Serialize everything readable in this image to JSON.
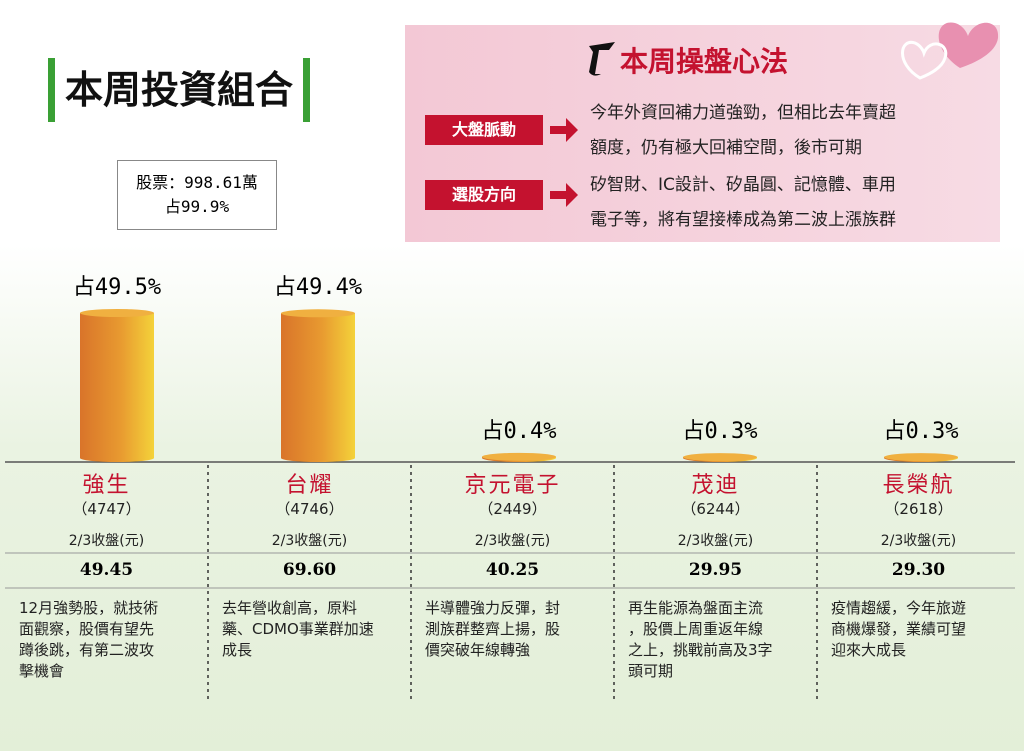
{
  "header": {
    "title": "本周投資組合",
    "holding_lines": [
      "股票：998.61萬",
      "占99.9%"
    ]
  },
  "strategy": {
    "title": "本周操盤心法",
    "items": [
      {
        "label": "大盤脈動",
        "lines": [
          "今年外資回補力道強勁，但相比去年賣超",
          "額度，仍有極大回補空間，後市可期"
        ]
      },
      {
        "label": "選股方向",
        "lines": [
          "矽智財、IC設計、矽晶圓、記憶體、車用",
          "電子等，將有望接棒成為第二波上漲族群"
        ]
      }
    ]
  },
  "stocks": [
    {
      "name": "強生",
      "code": "（4747）",
      "share": 49.5,
      "share_label": "占49.5%",
      "close_label": "2/3收盤(元)",
      "close": "49.45",
      "lines": [
        "12月強勢股，就技術",
        "面觀察，股價有望先",
        "蹲後跳，有第二波攻",
        "擊機會"
      ]
    },
    {
      "name": "台耀",
      "code": "（4746）",
      "share": 49.4,
      "share_label": "占49.4%",
      "close_label": "2/3收盤(元)",
      "close": "69.60",
      "lines": [
        "去年營收創高，原料",
        "藥、CDMO事業群加速",
        "成長"
      ]
    },
    {
      "name": "京元電子",
      "code": "（2449）",
      "share": 0.4,
      "share_label": "占0.4%",
      "close_label": "2/3收盤(元)",
      "close": "40.25",
      "lines": [
        "半導體強力反彈，封",
        "測族群整齊上揚，股",
        "價突破年線轉強"
      ]
    },
    {
      "name": "茂迪",
      "code": "（6244）",
      "share": 0.3,
      "share_label": "占0.3%",
      "close_label": "2/3收盤(元)",
      "close": "29.95",
      "lines": [
        "再生能源為盤面主流",
        "，股價上周重返年線",
        "之上，挑戰前高及3字",
        "頭可期"
      ]
    },
    {
      "name": "長榮航",
      "code": "（2618）",
      "share": 0.3,
      "share_label": "占0.3%",
      "close_label": "2/3收盤(元)",
      "close": "29.30",
      "lines": [
        "疫情趨緩，今年旅遊",
        "商機爆發，業績可望",
        "迎來大成長"
      ]
    }
  ]
}
